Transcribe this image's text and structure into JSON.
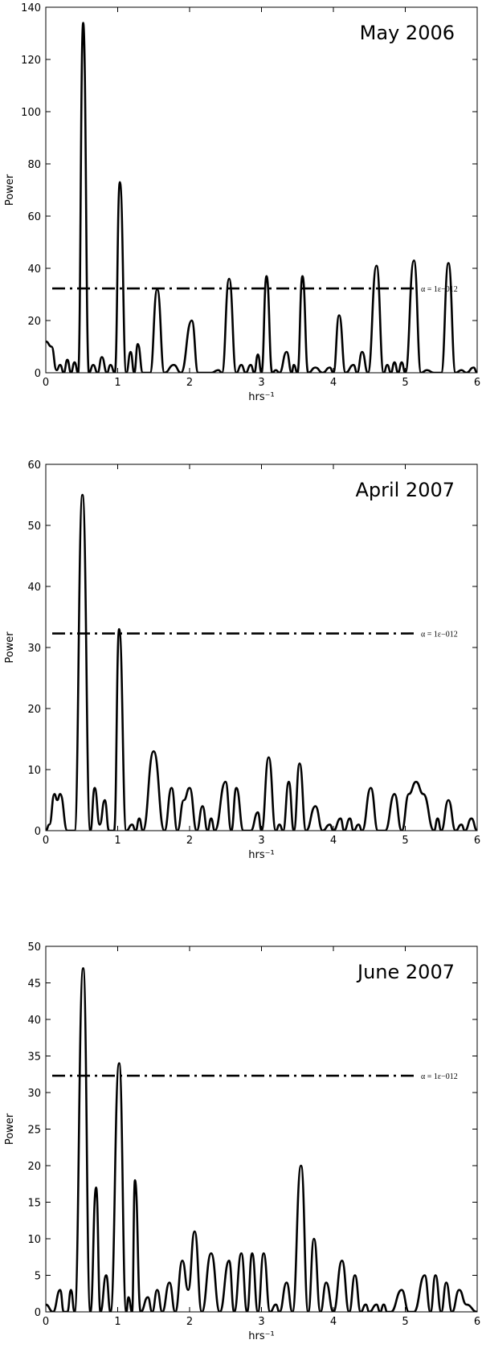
{
  "chart_data": [
    {
      "type": "line",
      "title": "May 2006",
      "xlabel": "hrs⁻¹",
      "ylabel": "Power",
      "xlim": [
        0,
        6
      ],
      "xticks": [
        0,
        1,
        2,
        3,
        4,
        5,
        6
      ],
      "ylim": [
        0,
        140
      ],
      "yticks": [
        0,
        20,
        40,
        60,
        80,
        100,
        120,
        140
      ],
      "threshold_value": 32.3,
      "threshold_label": "α = 1ε−012",
      "x": [
        0,
        0.08,
        0.15,
        0.2,
        0.25,
        0.3,
        0.35,
        0.4,
        0.45,
        0.52,
        0.6,
        0.66,
        0.72,
        0.78,
        0.85,
        0.9,
        0.96,
        1.03,
        1.12,
        1.18,
        1.23,
        1.28,
        1.35,
        1.45,
        1.55,
        1.65,
        1.78,
        1.88,
        2.03,
        2.12,
        2.3,
        2.4,
        2.45,
        2.55,
        2.65,
        2.72,
        2.78,
        2.85,
        2.9,
        2.95,
        3.0,
        3.07,
        3.15,
        3.2,
        3.25,
        3.35,
        3.42,
        3.45,
        3.5,
        3.57,
        3.65,
        3.75,
        3.85,
        3.95,
        4.0,
        4.08,
        4.17,
        4.28,
        4.33,
        4.4,
        4.48,
        4.6,
        4.7,
        4.75,
        4.8,
        4.85,
        4.9,
        4.95,
        5.0,
        5.12,
        5.22,
        5.3,
        5.4,
        5.5,
        5.6,
        5.7,
        5.78,
        5.85,
        5.95,
        6.0
      ],
      "values": [
        12,
        10,
        1,
        3,
        0,
        5,
        0,
        4,
        0,
        134,
        0,
        3,
        0,
        6,
        0,
        3,
        0,
        73,
        0,
        8,
        0,
        11,
        0,
        0,
        32,
        0,
        3,
        0,
        20,
        0,
        0,
        1,
        0,
        36,
        0,
        3,
        0,
        3,
        0,
        7,
        0,
        37,
        0,
        1,
        0,
        8,
        0,
        3,
        0,
        37,
        0,
        2,
        0,
        2,
        0,
        22,
        0,
        3,
        0,
        8,
        0,
        41,
        0,
        3,
        0,
        4,
        0,
        4,
        0,
        43,
        0,
        1,
        0,
        0,
        42,
        0,
        1,
        0,
        2,
        0
      ],
      "color": "#000000"
    },
    {
      "type": "line",
      "title": "April 2007",
      "xlabel": "hrs⁻¹",
      "ylabel": "Power",
      "xlim": [
        0,
        6
      ],
      "xticks": [
        0,
        1,
        2,
        3,
        4,
        5,
        6
      ],
      "ylim": [
        0,
        60
      ],
      "yticks": [
        0,
        10,
        20,
        30,
        40,
        50,
        60
      ],
      "threshold_value": 32.3,
      "threshold_label": "α = 1ε−012",
      "x": [
        0,
        0.05,
        0.12,
        0.16,
        0.2,
        0.3,
        0.4,
        0.51,
        0.62,
        0.68,
        0.75,
        0.82,
        0.88,
        0.95,
        1.02,
        1.12,
        1.2,
        1.25,
        1.3,
        1.35,
        1.5,
        1.65,
        1.75,
        1.83,
        1.92,
        2.0,
        2.1,
        2.18,
        2.25,
        2.3,
        2.35,
        2.5,
        2.58,
        2.65,
        2.75,
        2.85,
        2.95,
        3.0,
        3.1,
        3.2,
        3.25,
        3.3,
        3.38,
        3.45,
        3.53,
        3.62,
        3.75,
        3.85,
        3.95,
        4.0,
        4.1,
        4.15,
        4.23,
        4.28,
        4.35,
        4.4,
        4.52,
        4.62,
        4.72,
        4.85,
        4.95,
        5.05,
        5.15,
        5.25,
        5.4,
        5.45,
        5.5,
        5.6,
        5.7,
        5.78,
        5.83,
        5.92,
        6.0
      ],
      "values": [
        0,
        1,
        6,
        5,
        6,
        0,
        0,
        55,
        0,
        7,
        1,
        5,
        0,
        0,
        33,
        0,
        1,
        0,
        2,
        0,
        13,
        0,
        7,
        0,
        5,
        7,
        0,
        4,
        0,
        2,
        0,
        8,
        0,
        7,
        0,
        0,
        3,
        0,
        12,
        0,
        1,
        0,
        8,
        0,
        11,
        0,
        4,
        0,
        1,
        0,
        2,
        0,
        2,
        0,
        1,
        0,
        7,
        0,
        0,
        6,
        0,
        6,
        8,
        6,
        0,
        2,
        0,
        5,
        0,
        1,
        0,
        2,
        0
      ],
      "color": "#000000"
    },
    {
      "type": "line",
      "title": "June 2007",
      "xlabel": "hrs⁻¹",
      "ylabel": "Power",
      "xlim": [
        0,
        6
      ],
      "xticks": [
        0,
        1,
        2,
        3,
        4,
        5,
        6
      ],
      "ylim": [
        0,
        50
      ],
      "yticks": [
        0,
        5,
        10,
        15,
        20,
        25,
        30,
        35,
        40,
        45,
        50
      ],
      "threshold_value": 32.3,
      "threshold_label": "α = 1ε−012",
      "x": [
        0,
        0.1,
        0.2,
        0.25,
        0.3,
        0.35,
        0.4,
        0.52,
        0.62,
        0.7,
        0.76,
        0.84,
        0.9,
        1.02,
        1.12,
        1.15,
        1.2,
        1.24,
        1.32,
        1.42,
        1.48,
        1.55,
        1.62,
        1.72,
        1.8,
        1.9,
        1.98,
        2.07,
        2.17,
        2.3,
        2.42,
        2.55,
        2.62,
        2.72,
        2.8,
        2.87,
        2.95,
        3.03,
        3.12,
        3.2,
        3.25,
        3.35,
        3.43,
        3.55,
        3.65,
        3.73,
        3.82,
        3.9,
        4.0,
        4.12,
        4.22,
        4.3,
        4.38,
        4.45,
        4.5,
        4.6,
        4.65,
        4.7,
        4.75,
        4.8,
        4.95,
        5.05,
        5.12,
        5.27,
        5.35,
        5.42,
        5.5,
        5.57,
        5.65,
        5.75,
        5.85,
        6.0
      ],
      "values": [
        1,
        0,
        3,
        0,
        0,
        3,
        0,
        47,
        0,
        17,
        0,
        5,
        0,
        34,
        0,
        2,
        0,
        18,
        0,
        2,
        0,
        3,
        0,
        4,
        0,
        7,
        3,
        11,
        0,
        8,
        0,
        7,
        0,
        8,
        0,
        8,
        0,
        8,
        0,
        1,
        0,
        4,
        0,
        20,
        0,
        10,
        0,
        4,
        0,
        7,
        0,
        5,
        0,
        1,
        0,
        1,
        0,
        1,
        0,
        0,
        3,
        0,
        0,
        5,
        0,
        5,
        0,
        4,
        0,
        3,
        1,
        0
      ],
      "color": "#000000"
    }
  ]
}
